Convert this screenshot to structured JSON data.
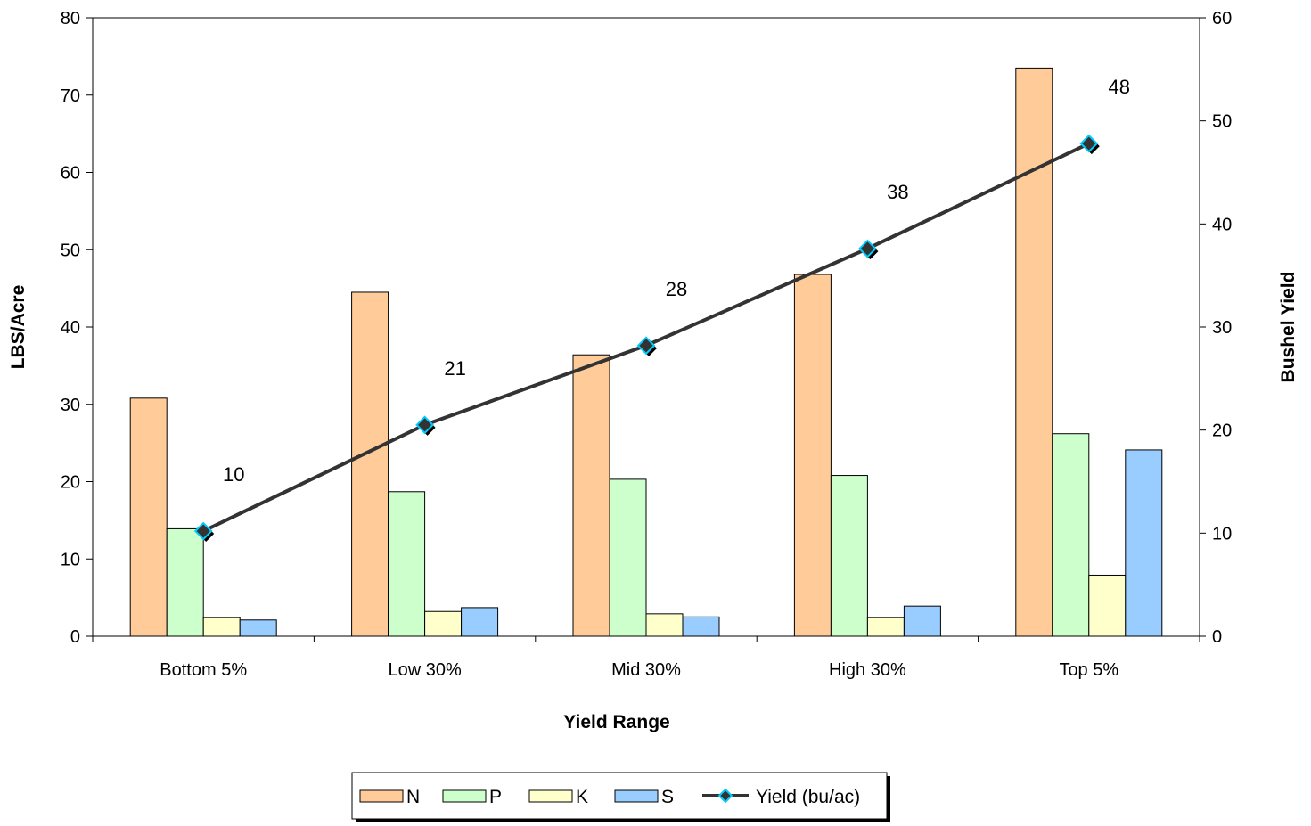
{
  "chart_data": {
    "type": "bar",
    "xlabel": "Yield Range",
    "ylabel": "LBS/Acre",
    "y2label": "Bushel Yield",
    "ylim": [
      0,
      80
    ],
    "y2lim": [
      0,
      60
    ],
    "yticks": [
      "0",
      "10",
      "20",
      "30",
      "40",
      "50",
      "60",
      "70",
      "80"
    ],
    "y2ticks": [
      "0",
      "10",
      "20",
      "30",
      "40",
      "50",
      "60"
    ],
    "categories": [
      "Bottom 5%",
      "Low 30%",
      "Mid 30%",
      "High 30%",
      "Top 5%"
    ],
    "series": [
      {
        "name": "N",
        "type": "bar",
        "axis": "left",
        "color": "#FFCC99",
        "values": [
          30.8,
          44.5,
          36.4,
          46.8,
          73.5
        ]
      },
      {
        "name": "P",
        "type": "bar",
        "axis": "left",
        "color": "#CCFFCC",
        "values": [
          13.9,
          18.7,
          20.3,
          20.8,
          26.2
        ]
      },
      {
        "name": "K",
        "type": "bar",
        "axis": "left",
        "color": "#FFFFCC",
        "values": [
          2.4,
          3.2,
          2.9,
          2.4,
          7.9
        ]
      },
      {
        "name": "S",
        "type": "bar",
        "axis": "left",
        "color": "#99CCFF",
        "values": [
          2.1,
          3.7,
          2.5,
          3.9,
          24.1
        ]
      },
      {
        "name": "Yield (bu/ac)",
        "type": "line",
        "axis": "right",
        "color": "#333333",
        "marker_color": "#00CCFF",
        "values": [
          10.2,
          20.5,
          28.2,
          37.6,
          47.8
        ],
        "labels": [
          "10",
          "21",
          "28",
          "38",
          "48"
        ]
      }
    ],
    "legend": "bottom",
    "grid": false
  }
}
